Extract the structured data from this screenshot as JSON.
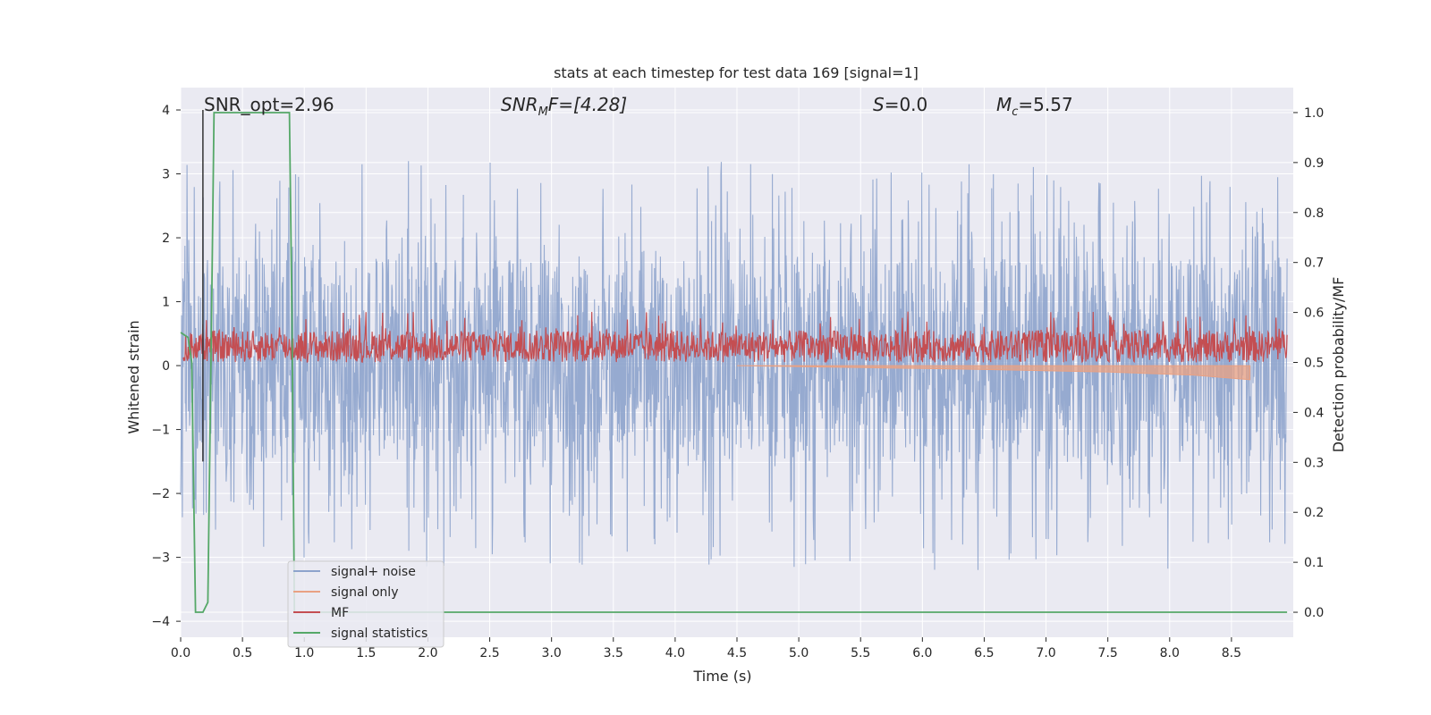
{
  "chart_data": {
    "type": "line",
    "title": "stats at each timestep for test data 169 [signal=1]",
    "xlabel": "Time (s)",
    "ylabel": "Whitened strain",
    "ylabel_right": "Detection probability/MF",
    "xlim": [
      0.0,
      9.0
    ],
    "ylim": [
      -4.25,
      4.35
    ],
    "ylim_right": [
      -0.05,
      1.05
    ],
    "x_ticks": [
      "0.0",
      "0.5",
      "1.0",
      "1.5",
      "2.0",
      "2.5",
      "3.0",
      "3.5",
      "4.0",
      "4.5",
      "5.0",
      "5.5",
      "6.0",
      "6.5",
      "7.0",
      "7.5",
      "8.0",
      "8.5"
    ],
    "y_ticks": [
      "4",
      "3",
      "2",
      "1",
      "0",
      "−1",
      "−2",
      "−3",
      "−4"
    ],
    "y_ticks_right": [
      "1.0",
      "0.9",
      "0.8",
      "0.7",
      "0.6",
      "0.5",
      "0.4",
      "0.3",
      "0.2",
      "0.1",
      "0.0"
    ],
    "grid": true,
    "legend_position": "lower-left",
    "annotations": {
      "snr_opt": "SNR_opt=2.96",
      "snr_mf_sym": "SNR",
      "snr_mf_sub": "M",
      "snr_mf_rest": "F=[4.28]",
      "s_sym": "S",
      "s_val": "=0.0",
      "mc_sym": "M",
      "mc_sub": "c",
      "mc_val": "=5.57"
    },
    "series": [
      {
        "name": "signal+ noise",
        "color": "#8da3cc",
        "axis": "left",
        "description_range": [
          -3.8,
          4.0
        ],
        "envelope_y": [
          -1.5,
          1.7
        ]
      },
      {
        "name": "signal only",
        "color": "#e9a183",
        "axis": "left",
        "x": [
          4.5,
          5.5,
          6.5,
          7.5,
          8.2,
          8.65
        ],
        "y": [
          0.0,
          -0.03,
          -0.06,
          -0.1,
          -0.15,
          -0.22
        ]
      },
      {
        "name": "MF",
        "color": "#c44e52",
        "axis": "left",
        "range_y": [
          0.0,
          0.9
        ]
      },
      {
        "name": "signal statistics",
        "color": "#55a868",
        "axis": "right",
        "x": [
          0.0,
          0.03,
          0.06,
          0.09,
          0.12,
          0.18,
          0.22,
          0.25,
          0.27,
          0.3,
          0.85,
          0.88,
          0.9,
          0.92,
          8.95
        ],
        "y": [
          0.56,
          0.555,
          0.55,
          0.5,
          0.0,
          0.0,
          0.02,
          0.6,
          1.0,
          1.0,
          1.0,
          1.0,
          0.6,
          0.0,
          0.0
        ]
      }
    ],
    "vertical_marker_x": 0.18,
    "colors": {
      "background": "#eaeaf2",
      "grid": "#ffffff",
      "signal_noise": "#8da3cc",
      "signal_only": "#e9a183",
      "mf": "#c44e52",
      "statistics": "#55a868",
      "marker": "#333333"
    }
  }
}
